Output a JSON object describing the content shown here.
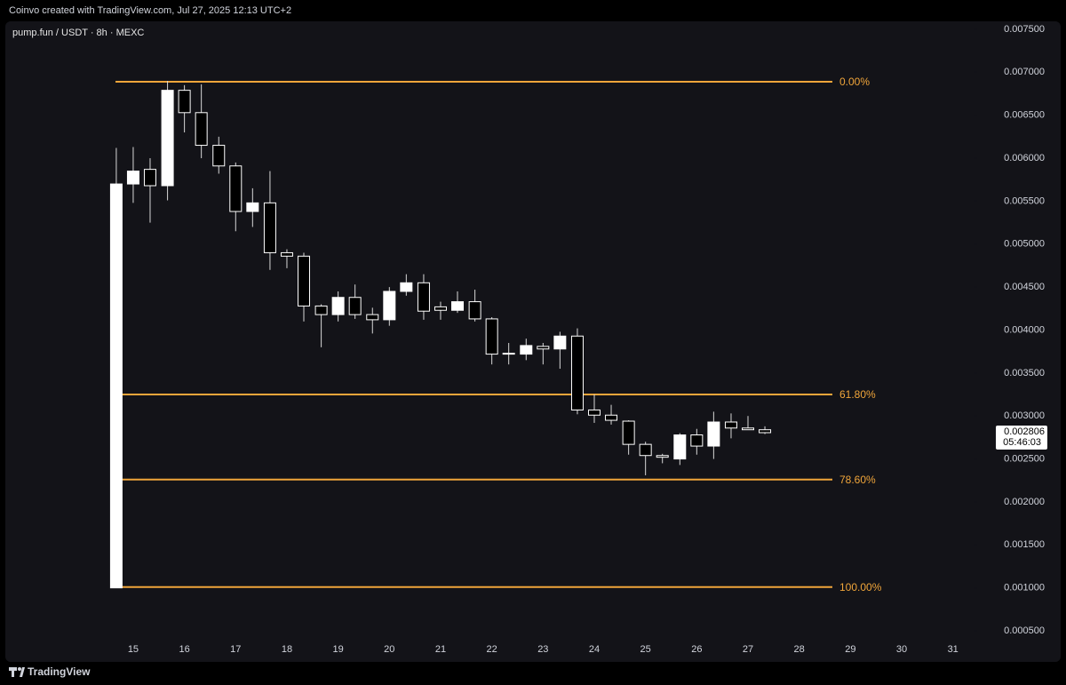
{
  "header": {
    "credit": "Coinvo created with TradingView.com, Jul 27, 2025 12:13 UTC+2"
  },
  "footer": {
    "brand": "TradingView"
  },
  "chart_data": {
    "type": "candlestick",
    "title": "pump.fun / USDT · 8h · MEXC",
    "up_color": "#ffffff",
    "down_color": "#000000",
    "x": [
      14.67,
      15,
      15.33,
      15.67,
      16,
      16.33,
      16.67,
      17,
      17.33,
      17.67,
      18,
      18.33,
      18.67,
      19,
      19.33,
      19.67,
      20,
      20.33,
      20.67,
      21,
      21.33,
      21.67,
      22,
      22.33,
      22.67,
      23,
      23.33,
      23.67,
      24,
      24.33,
      24.67,
      25,
      25.33,
      25.67,
      26,
      26.33,
      26.67,
      27,
      27.33
    ],
    "open": [
      0.001,
      0.0057,
      0.00587,
      0.00568,
      0.00679,
      0.00653,
      0.00615,
      0.00591,
      0.00538,
      0.00548,
      0.0049,
      0.00486,
      0.00428,
      0.00418,
      0.00438,
      0.00418,
      0.00412,
      0.00445,
      0.00455,
      0.00427,
      0.00423,
      0.00433,
      0.00413,
      0.00373,
      0.00372,
      0.00381,
      0.00378,
      0.00393,
      0.00307,
      0.00301,
      0.00294,
      0.00267,
      0.00254,
      0.0025,
      0.00278,
      0.00265,
      0.00293,
      0.00286,
      0.00284
    ],
    "high": [
      0.00612,
      0.00613,
      0.006,
      0.0069,
      0.00685,
      0.00686,
      0.00625,
      0.00595,
      0.00565,
      0.00585,
      0.00494,
      0.0049,
      0.0043,
      0.00445,
      0.00453,
      0.00426,
      0.0045,
      0.00465,
      0.00465,
      0.00433,
      0.00445,
      0.00447,
      0.00415,
      0.00385,
      0.0039,
      0.00385,
      0.00398,
      0.00402,
      0.00325,
      0.00313,
      0.00295,
      0.0027,
      0.00256,
      0.0028,
      0.00285,
      0.00305,
      0.00303,
      0.003,
      0.00288
    ],
    "low": [
      0.001,
      0.00548,
      0.00525,
      0.00551,
      0.0063,
      0.006,
      0.00582,
      0.00515,
      0.0052,
      0.0047,
      0.00472,
      0.0041,
      0.0038,
      0.0041,
      0.00413,
      0.00396,
      0.00405,
      0.0044,
      0.00412,
      0.00412,
      0.0042,
      0.0041,
      0.0036,
      0.0036,
      0.00365,
      0.0036,
      0.00355,
      0.00302,
      0.00292,
      0.0029,
      0.00255,
      0.00231,
      0.00245,
      0.00243,
      0.00255,
      0.0025,
      0.00274,
      0.00284,
      0.00279
    ],
    "close": [
      0.0057,
      0.00585,
      0.00568,
      0.00679,
      0.00653,
      0.00615,
      0.00591,
      0.00538,
      0.00548,
      0.0049,
      0.00486,
      0.00428,
      0.00418,
      0.00438,
      0.00418,
      0.00412,
      0.00445,
      0.00455,
      0.00422,
      0.00423,
      0.00433,
      0.00413,
      0.00372,
      0.00372,
      0.00382,
      0.00378,
      0.00393,
      0.00307,
      0.00301,
      0.00295,
      0.00267,
      0.00254,
      0.00252,
      0.00278,
      0.00265,
      0.00293,
      0.00286,
      0.00284,
      0.002806
    ],
    "xlim": [
      12.4,
      31.3
    ],
    "xticks": [
      15,
      16,
      17,
      18,
      19,
      20,
      21,
      22,
      23,
      24,
      25,
      26,
      27,
      28,
      29,
      30,
      31
    ],
    "ylim": [
      0.0004,
      0.0076
    ],
    "yticks": [
      {
        "value": 0.0005,
        "label": "0.000500"
      },
      {
        "value": 0.001,
        "label": "0.001000"
      },
      {
        "value": 0.0015,
        "label": "0.001500"
      },
      {
        "value": 0.002,
        "label": "0.002000"
      },
      {
        "value": 0.0025,
        "label": "0.002500"
      },
      {
        "value": 0.003,
        "label": "0.003000"
      },
      {
        "value": 0.0035,
        "label": "0.003500"
      },
      {
        "value": 0.004,
        "label": "0.004000"
      },
      {
        "value": 0.0045,
        "label": "0.004500"
      },
      {
        "value": 0.005,
        "label": "0.005000"
      },
      {
        "value": 0.0055,
        "label": "0.005500"
      },
      {
        "value": 0.006,
        "label": "0.006000"
      },
      {
        "value": 0.0065,
        "label": "0.006500"
      },
      {
        "value": 0.007,
        "label": "0.007000"
      },
      {
        "value": 0.0075,
        "label": "0.007500"
      }
    ],
    "fib_color": "#f0a53a",
    "fib_levels": [
      {
        "value": 0.00689,
        "label": "0.00%"
      },
      {
        "value": 0.00325,
        "label": "61.80%"
      },
      {
        "value": 0.00226,
        "label": "78.60%"
      },
      {
        "value": 0.00101,
        "label": "100.00%"
      }
    ],
    "last_price": 0.002806,
    "countdown": "05:46:03"
  }
}
